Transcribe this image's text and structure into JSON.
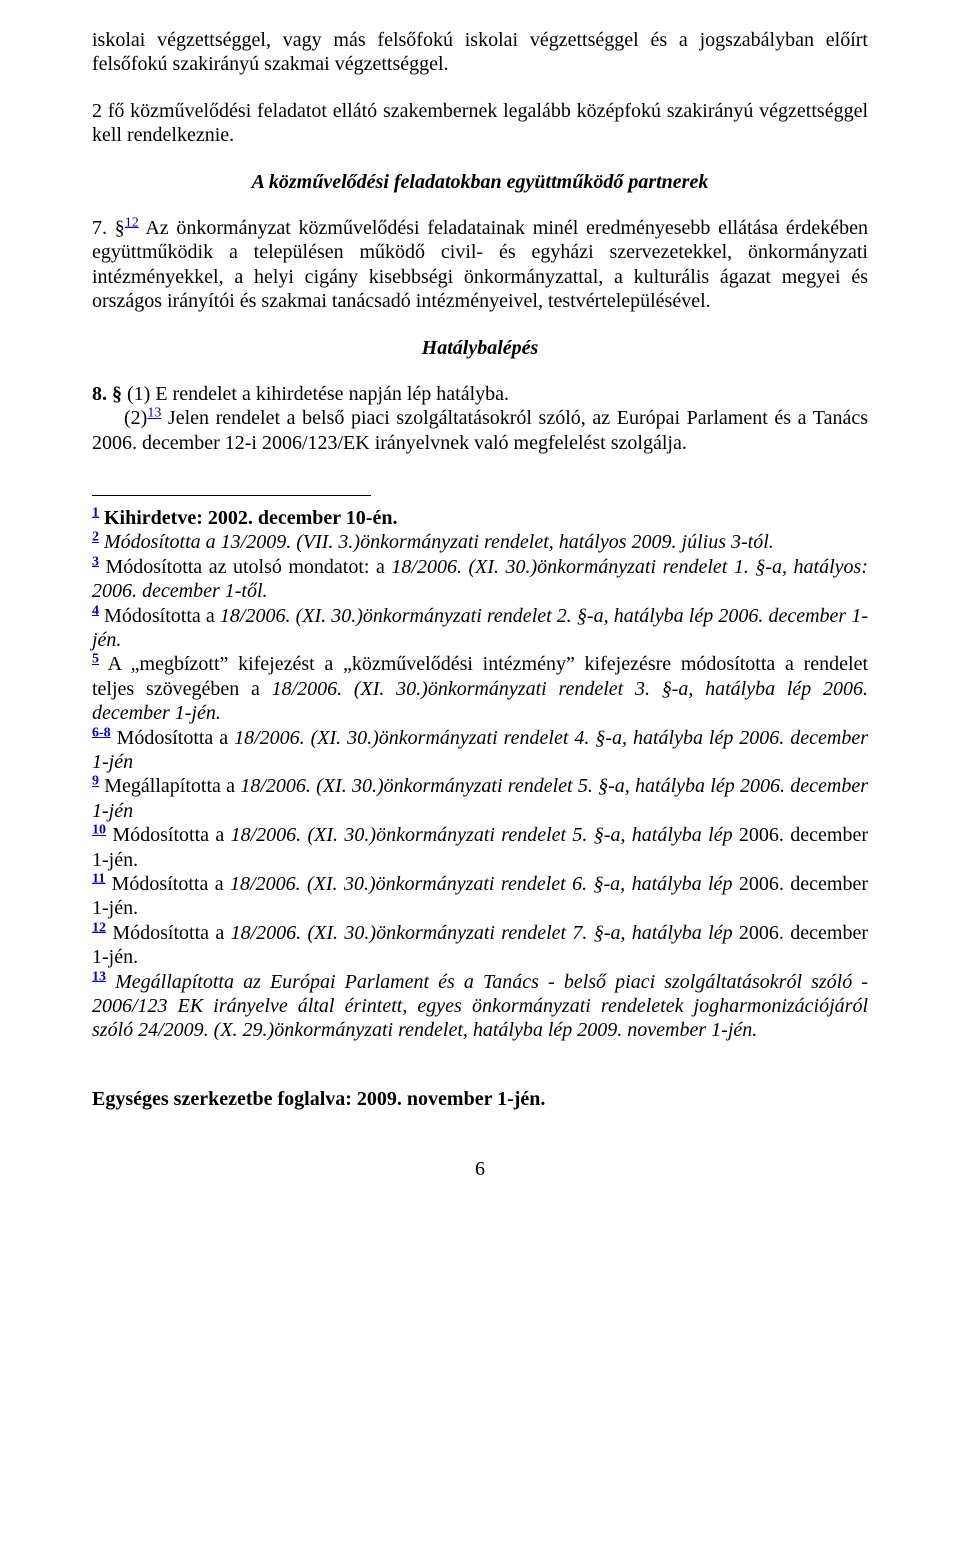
{
  "para_intro_tail": "iskolai végzettséggel, vagy más felsőfokú iskolai végzettséggel és a jogszabályban előírt felsőfokú szakirányú szakmai végzettséggel.",
  "para_2fo": "2 fő közművelődési feladatot ellátó szakembernek legalább középfokú szakirányú végzettséggel kell rendelkeznie.",
  "heading_partners": "A közművelődési feladatokban együttműködő partnerek",
  "p7_lead": "7. §",
  "p7_ref": "12",
  "p7_body": " Az önkormányzat közművelődési feladatainak minél eredményesebb ellátása érdekében együttműködik a településen működő civil- és egyházi szervezetekkel, önkormányzati intézményekkel, a helyi cigány kisebbségi önkormányzattal, a kulturális ágazat megyei és országos irányítói és szakmai tanácsadó intézményeivel, testvértelepülésével.",
  "heading_hataly": "Hatálybalépés",
  "p8_1_lead": "8. § ",
  "p8_1_body": "(1) E rendelet a kihirdetése napján lép hatályba.",
  "p8_2_lead": "(2)",
  "p8_2_ref": "13",
  "p8_2_body": " Jelen rendelet a belső piaci szolgáltatásokról szóló, az Európai Parlament és a Tanács 2006. december 12-i 2006/123/EK irányelvnek való megfelelést szolgálja.",
  "fn1_sup": "1",
  "fn1_lead": " Kihirdetve: 2002. december 10-én.",
  "fn2_sup": "2",
  "fn2_body": " Módosította a 13/2009. (VII. 3.)önkormányzati rendelet, hatályos 2009. július 3-tól.",
  "fn3_sup": "3",
  "fn3_body_a": " Módosította az utolsó mondatot: a ",
  "fn3_body_b": "18/2006. (XI. 30.)önkormányzati rendelet 1. §-a, hatályos: 2006. december 1-től.",
  "fn4_sup": "4",
  "fn4_body_a": " Módosította a ",
  "fn4_body_b": "18/2006. (XI. 30.)önkormányzati rendelet 2. §-a, hatályba lép 2006. december 1-jén.",
  "fn5_sup": "5",
  "fn5_body_a": " A „megbízott” kifejezést a „közművelődési intézmény” kifejezésre módosította a rendelet teljes szövegében a ",
  "fn5_body_b": "18/2006. (XI. 30.)önkormányzati rendelet 3. §-a, hatályba lép 2006. december 1-jén.",
  "fn68_sup": "6-8",
  "fn68_body_a": " Módosította a ",
  "fn68_body_b": "18/2006. (XI. 30.)önkormányzati rendelet 4. §-a, hatályba lép 2006. december 1-jén",
  "fn9_sup": "9",
  "fn9_body_a": " Megállapította a ",
  "fn9_body_b": "18/2006. (XI. 30.)önkormányzati rendelet 5. §-a, hatályba lép 2006. december 1-jén",
  "fn10_sup": "10",
  "fn10_body_a": " Módosította a  ",
  "fn10_body_b": "18/2006. (XI. 30.)önkormányzati rendelet 5. §-a, hatályba lép",
  "fn10_body_c": " 2006. december 1-jén.",
  "fn11_sup": "11",
  "fn11_body_a": " Módosította a ",
  "fn11_body_b": "18/2006. (XI. 30.)önkormányzati rendelet 6. §-a, hatályba lép",
  "fn11_body_c": " 2006. december 1-jén.",
  "fn12_sup": "12",
  "fn12_body_a": " Módosította a ",
  "fn12_body_b": "18/2006. (XI. 30.)önkormányzati rendelet 7. §-a, hatályba lép",
  "fn12_body_c": " 2006. december 1-jén.",
  "fn13_sup": "13",
  "fn13_body_a": " Megállapította  az Európai Parlament és a Tanács - belső piaci szolgáltatásokról szóló - 2006/123 EK irányelve által érintett, egyes önkormányzati rendeletek jogharmonizációjáról szóló 24/2009. (X. 29.)önkormányzati rendelet, hatályba lép 2009. november 1-jén.",
  "closing": "Egységes szerkezetbe foglalva: 2009. november 1-jén.",
  "page_no": "6"
}
